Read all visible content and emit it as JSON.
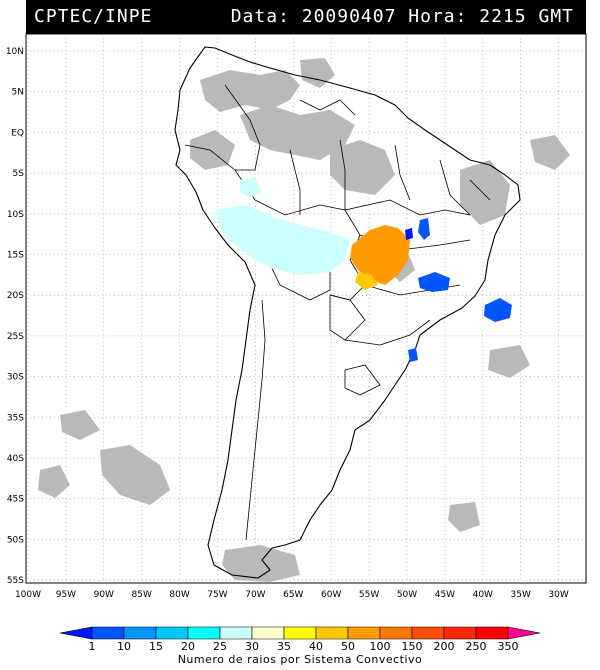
{
  "header": {
    "source": "CPTEC/INPE",
    "datetime": "Data: 20090407 Hora: 2215 GMT"
  },
  "lat_labels": [
    "10N",
    "5N",
    "EQ",
    "5S",
    "10S",
    "15S",
    "20S",
    "25S",
    "30S",
    "35S",
    "40S",
    "45S",
    "50S",
    "55S"
  ],
  "lon_labels": [
    "100W",
    "95W",
    "90W",
    "85W",
    "80W",
    "75W",
    "70W",
    "65W",
    "60W",
    "55W",
    "50W",
    "45W",
    "40W",
    "35W",
    "30W"
  ],
  "legend": {
    "title": "Numero de raios por Sistema Convectivo",
    "ticks": [
      "1",
      "10",
      "15",
      "20",
      "25",
      "30",
      "35",
      "40",
      "50",
      "100",
      "150",
      "200",
      "250",
      "350"
    ],
    "colors": [
      "#0015ff",
      "#0055ff",
      "#0095ff",
      "#00c8ff",
      "#00ffff",
      "#ccffff",
      "#ffffcc",
      "#ffff00",
      "#ffc800",
      "#ff9b00",
      "#ff7800",
      "#ff4b00",
      "#ff2800",
      "#ff0000",
      "#ff0096"
    ]
  },
  "colors": {
    "cloud": "#b4b4b4",
    "land_line": "#000000",
    "grid": "#888888",
    "header_bg": "#000000"
  }
}
